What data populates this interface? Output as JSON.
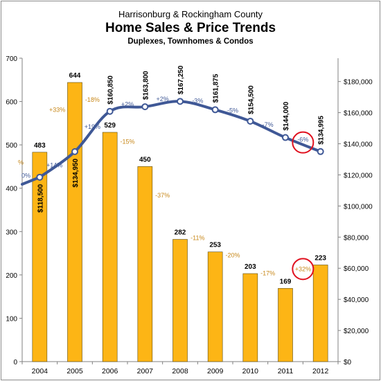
{
  "chart_data": {
    "type": "bar+line",
    "title_lines": [
      "Harrisonburg & Rockingham County",
      "Home Sales & Price Trends",
      "Duplexes, Townhomes & Condos"
    ],
    "categories": [
      "2004",
      "2005",
      "2006",
      "2007",
      "2008",
      "2009",
      "2010",
      "2011",
      "2012"
    ],
    "sales": {
      "values": [
        483,
        644,
        529,
        450,
        282,
        253,
        203,
        169,
        223
      ],
      "labels": [
        "483",
        "644",
        "529",
        "450",
        "282",
        "253",
        "203",
        "169",
        "223"
      ],
      "change_labels": [
        "",
        "+33%",
        "-18%",
        "-15%",
        "-37%",
        "-11%",
        "-20%",
        "-17%",
        "+32%"
      ],
      "clipped_prev_change": "%",
      "color": "#FDB515"
    },
    "median_price": {
      "values": [
        118500,
        134950,
        160850,
        163800,
        167250,
        161875,
        154500,
        144000,
        134995
      ],
      "labels": [
        "$118,500",
        "$134,950",
        "$160,850",
        "$163,800",
        "$167,250",
        "$161,875",
        "$154,500",
        "$144,000",
        "$134,995"
      ],
      "change_labels": [
        "",
        "+14%",
        "+19%",
        "+2%",
        "+2%",
        "-3%",
        "-5%",
        "-7%",
        "-6%"
      ],
      "clipped_prev_change": "0%",
      "color": "#3F5896"
    },
    "left_axis": {
      "min": 0,
      "max": 700,
      "ticks": [
        "0",
        "100",
        "200",
        "300",
        "400",
        "500",
        "600",
        "700"
      ]
    },
    "right_axis": {
      "min": 0,
      "max": 195000,
      "ticks": [
        "$0",
        "$20,000",
        "$40,000",
        "$60,000",
        "$80,000",
        "$100,000",
        "$120,000",
        "$140,000",
        "$160,000",
        "$180,000"
      ]
    },
    "highlight_circles": [
      "-6%",
      "+32%"
    ],
    "colors": {
      "sales_change_text": "#C8881A",
      "price_change_text": "#3F5896",
      "circle": "#E0101E"
    }
  }
}
